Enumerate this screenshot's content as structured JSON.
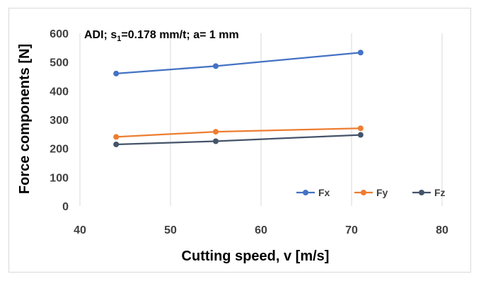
{
  "chart_data": {
    "type": "line",
    "annotation": {
      "prefix": "ADI; s",
      "subscript": "1",
      "suffix": "=0.178 mm/t; a= 1 mm"
    },
    "xlabel": "Cutting speed, v [m/s]",
    "ylabel": "Force components [N]",
    "xlim": [
      40,
      80
    ],
    "ylim": [
      0,
      600
    ],
    "xticks": [
      "40",
      "50",
      "60",
      "70",
      "80"
    ],
    "yticks": [
      "0",
      "100",
      "200",
      "300",
      "400",
      "500",
      "600"
    ],
    "grid": "vertical",
    "legend_position": "bottom-right",
    "x": [
      44,
      55,
      71
    ],
    "series": [
      {
        "name": "Fx",
        "values": [
          460,
          486,
          533
        ],
        "color": "#4472c4"
      },
      {
        "name": "Fy",
        "values": [
          240,
          258,
          270
        ],
        "color": "#ed7d31"
      },
      {
        "name": "Fz",
        "values": [
          214,
          225,
          247
        ],
        "color": "#44546a"
      }
    ]
  }
}
